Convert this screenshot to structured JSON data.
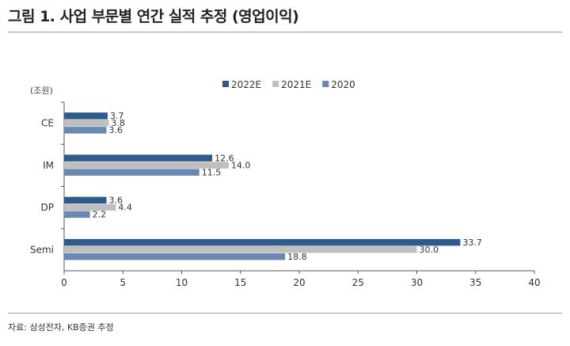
{
  "title": "그림 1. 사업 부문별 연간 실적 추정 (영업이익)",
  "source": "자료: 삼성전자, KB증권 추정",
  "chart_data": {
    "type": "bar",
    "orientation": "horizontal",
    "unit_label": "(조원)",
    "categories": [
      "CE",
      "IM",
      "DP",
      "Semi"
    ],
    "series": [
      {
        "name": "2022E",
        "color": "#2f5b8a",
        "values": [
          3.7,
          12.6,
          3.6,
          33.7
        ]
      },
      {
        "name": "2021E",
        "color": "#bfbfbf",
        "values": [
          3.8,
          14.0,
          4.4,
          30.0
        ]
      },
      {
        "name": "2020",
        "color": "#6b88b2",
        "values": [
          3.6,
          11.5,
          2.2,
          18.8
        ]
      }
    ],
    "xlim": [
      0,
      40
    ],
    "xticks": [
      0,
      5,
      10,
      15,
      20,
      25,
      30,
      35,
      40
    ],
    "legend": "top-center",
    "grid": false
  }
}
